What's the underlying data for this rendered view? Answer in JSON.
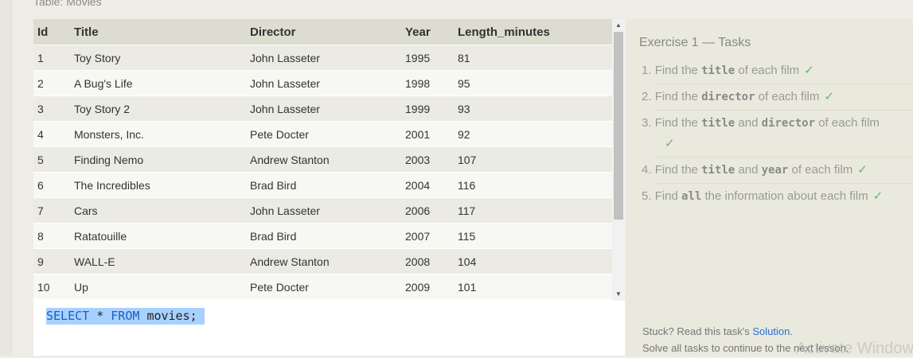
{
  "table_caption": "Table: Movies",
  "table": {
    "columns": [
      "Id",
      "Title",
      "Director",
      "Year",
      "Length_minutes"
    ],
    "rows": [
      [
        "1",
        "Toy Story",
        "John Lasseter",
        "1995",
        "81"
      ],
      [
        "2",
        "A Bug's Life",
        "John Lasseter",
        "1998",
        "95"
      ],
      [
        "3",
        "Toy Story 2",
        "John Lasseter",
        "1999",
        "93"
      ],
      [
        "4",
        "Monsters, Inc.",
        "Pete Docter",
        "2001",
        "92"
      ],
      [
        "5",
        "Finding Nemo",
        "Andrew Stanton",
        "2003",
        "107"
      ],
      [
        "6",
        "The Incredibles",
        "Brad Bird",
        "2004",
        "116"
      ],
      [
        "7",
        "Cars",
        "John Lasseter",
        "2006",
        "117"
      ],
      [
        "8",
        "Ratatouille",
        "Brad Bird",
        "2007",
        "115"
      ],
      [
        "9",
        "WALL-E",
        "Andrew Stanton",
        "2008",
        "104"
      ],
      [
        "10",
        "Up",
        "Pete Docter",
        "2009",
        "101"
      ]
    ]
  },
  "editor": {
    "keyword_select": "SELECT",
    "star": "*",
    "keyword_from": "FROM",
    "table_name": "movies;"
  },
  "exercise": {
    "title": "Exercise 1 — Tasks",
    "check_mark": "✓",
    "tasks": [
      {
        "num": "1.",
        "before": "Find the",
        "code1": "title",
        "mid": "",
        "code2": "",
        "after": "of each film"
      },
      {
        "num": "2.",
        "before": "Find the",
        "code1": "director",
        "mid": "",
        "code2": "",
        "after": "of each film"
      },
      {
        "num": "3.",
        "before": "Find the",
        "code1": "title",
        "mid": "and",
        "code2": "director",
        "after": "of each film"
      },
      {
        "num": "4.",
        "before": "Find the",
        "code1": "title",
        "mid": "and",
        "code2": "year",
        "after": "of each film"
      },
      {
        "num": "5.",
        "before": "Find",
        "code1": "all",
        "mid": "",
        "code2": "",
        "after": "the information about each film"
      }
    ],
    "stuck_text": "Stuck? Read this task's",
    "solution_link": "Solution",
    "stuck_end": ".",
    "continue_text": "Solve all tasks to continue to the next lesson."
  },
  "watermark": "Activate Windows",
  "colors": {
    "check": "#6ab46f",
    "link": "#2a6fd6",
    "selection": "#a8d1ff",
    "keyword": "#1a5fbf"
  }
}
